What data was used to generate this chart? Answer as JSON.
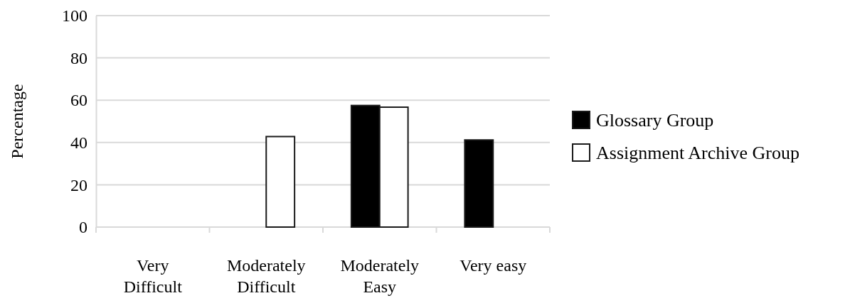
{
  "chart_data": {
    "type": "bar",
    "ylabel": "Percentage",
    "categories": [
      "Very Difficult",
      "Moderately Difficult",
      "Moderately Easy",
      "Very easy"
    ],
    "series": [
      {
        "name": "Glossary Group",
        "color": "#000000",
        "values": [
          0,
          0,
          57.5,
          41.2
        ]
      },
      {
        "name": "Assignment Archive Group",
        "color": "#ffffff",
        "values": [
          0,
          42.8,
          56.7,
          0
        ]
      }
    ],
    "ylim": [
      0,
      100
    ],
    "yticks": [
      0,
      20,
      40,
      60,
      80,
      100
    ],
    "grid": "y",
    "legend": "right"
  }
}
